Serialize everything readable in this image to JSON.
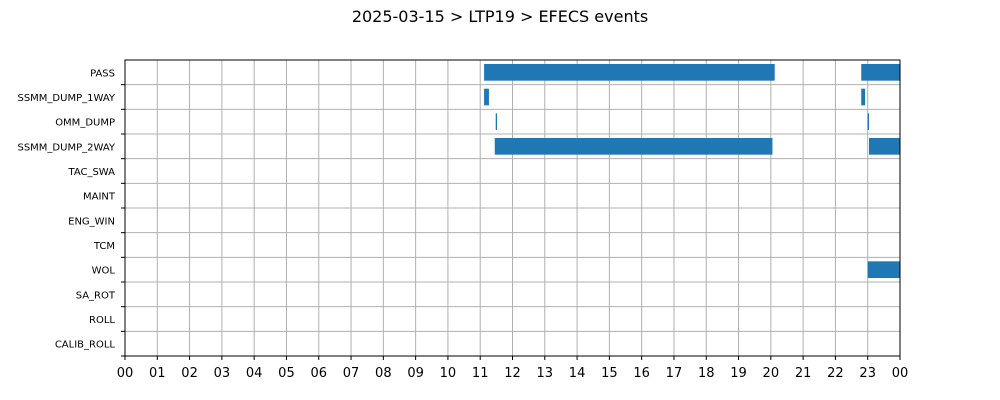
{
  "chart_data": {
    "type": "gantt",
    "title": "2025-03-15 > LTP19 > EFECS events",
    "x_ticks": [
      "00",
      "01",
      "02",
      "03",
      "04",
      "05",
      "06",
      "07",
      "08",
      "09",
      "10",
      "11",
      "12",
      "13",
      "14",
      "15",
      "16",
      "17",
      "18",
      "19",
      "20",
      "21",
      "22",
      "23",
      "00"
    ],
    "xlim": [
      0,
      24
    ],
    "x_unit": "hour",
    "rows": [
      "PASS",
      "SSMM_DUMP_1WAY",
      "OMM_DUMP",
      "SSMM_DUMP_2WAY",
      "TAC_SWA",
      "MAINT",
      "ENG_WIN",
      "TCM",
      "WOL",
      "SA_ROT",
      "ROLL",
      "CALIB_ROLL"
    ],
    "events": [
      {
        "row": "PASS",
        "start": 11.12,
        "end": 20.12
      },
      {
        "row": "PASS",
        "start": 22.8,
        "end": 24.0
      },
      {
        "row": "SSMM_DUMP_1WAY",
        "start": 11.12,
        "end": 11.27
      },
      {
        "row": "SSMM_DUMP_1WAY",
        "start": 22.8,
        "end": 22.92
      },
      {
        "row": "OMM_DUMP",
        "start": 11.48,
        "end": 11.52
      },
      {
        "row": "OMM_DUMP",
        "start": 23.0,
        "end": 23.04
      },
      {
        "row": "SSMM_DUMP_2WAY",
        "start": 11.45,
        "end": 20.05
      },
      {
        "row": "SSMM_DUMP_2WAY",
        "start": 23.04,
        "end": 24.0
      },
      {
        "row": "WOL",
        "start": 23.0,
        "end": 24.0
      }
    ],
    "grid": true,
    "bar_color": "#1f77b4"
  }
}
